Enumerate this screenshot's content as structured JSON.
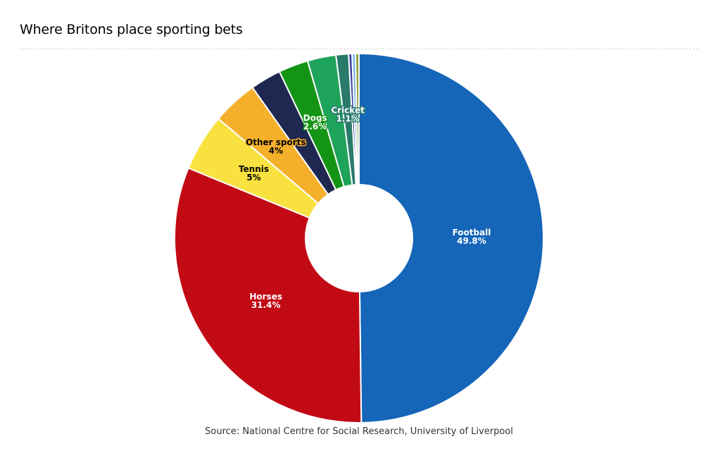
{
  "title": "Where Britons place sporting bets",
  "source": "Source: National Centre for Social Research, University of Liverpool",
  "chart_data": {
    "type": "pie",
    "donut": true,
    "title": "Where Britons place sporting bets",
    "unit": "%",
    "slices": [
      {
        "name": "Football",
        "value": 49.8,
        "value_label": "49.8%",
        "color": "#1565b8",
        "label_color": "#ffffff",
        "show_label": true
      },
      {
        "name": "Horses",
        "value": 31.4,
        "value_label": "31.4%",
        "color": "#c20a14",
        "label_color": "#ffffff",
        "show_label": true
      },
      {
        "name": "Tennis",
        "value": 5,
        "value_label": "5%",
        "color": "#f9e23f",
        "label_color": "#000000",
        "show_label": true
      },
      {
        "name": "Other sports",
        "value": 4,
        "value_label": "4%",
        "color": "#f5b02b",
        "label_color": "#000000",
        "show_label": true
      },
      {
        "name": "",
        "value": 2.7,
        "value_label": "",
        "color": "#1e2850",
        "label_color": "#ffffff",
        "show_label": false
      },
      {
        "name": "Dogs",
        "value": 2.6,
        "value_label": "2.6%",
        "color": "#149414",
        "label_color": "#ffffff",
        "show_label": true
      },
      {
        "name": "",
        "value": 2.5,
        "value_label": "",
        "color": "#1ea35a",
        "label_color": "#ffffff",
        "show_label": false
      },
      {
        "name": "Cricket",
        "value": 1.1,
        "value_label": "1.1%",
        "color": "#2a7a6c",
        "label_color": "#ffffff",
        "show_label": true
      },
      {
        "name": "",
        "value": 0.3,
        "value_label": "",
        "color": "#3b3f9c",
        "label_color": "#ffffff",
        "show_label": false
      },
      {
        "name": "",
        "value": 0.3,
        "value_label": "",
        "color": "#7ab8e0",
        "label_color": "#ffffff",
        "show_label": false
      },
      {
        "name": "",
        "value": 0.3,
        "value_label": "",
        "color": "#8aa03a",
        "label_color": "#ffffff",
        "show_label": false
      }
    ]
  }
}
